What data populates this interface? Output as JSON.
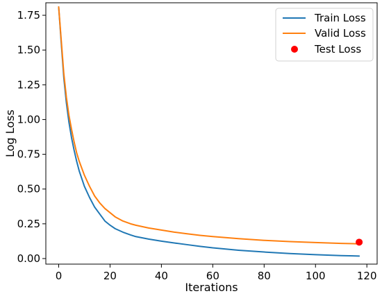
{
  "chart_data": {
    "type": "line",
    "title": "",
    "xlabel": "Iterations",
    "ylabel": "Log Loss",
    "xlim": [
      -5,
      124
    ],
    "ylim": [
      -0.04,
      1.84
    ],
    "x_ticks": [
      0,
      20,
      40,
      60,
      80,
      100,
      120
    ],
    "y_ticks": [
      0.0,
      0.25,
      0.5,
      0.75,
      1.0,
      1.25,
      1.5,
      1.75
    ],
    "x_tick_labels": [
      "0",
      "20",
      "40",
      "60",
      "80",
      "100",
      "120"
    ],
    "y_tick_labels": [
      "0.00",
      "0.25",
      "0.50",
      "0.75",
      "1.00",
      "1.25",
      "1.50",
      "1.75"
    ],
    "grid": false,
    "legend_position": "top-right",
    "series": [
      {
        "name": "Train Loss",
        "kind": "line",
        "color": "#1f77b4",
        "x": [
          0,
          1,
          2,
          3,
          4,
          5,
          6,
          7,
          8,
          10,
          12,
          14,
          16,
          18,
          20,
          22,
          25,
          28,
          30,
          35,
          40,
          45,
          50,
          55,
          60,
          70,
          80,
          90,
          100,
          110,
          117
        ],
        "y": [
          1.81,
          1.55,
          1.3,
          1.12,
          0.98,
          0.87,
          0.78,
          0.7,
          0.63,
          0.52,
          0.44,
          0.37,
          0.32,
          0.27,
          0.24,
          0.215,
          0.19,
          0.17,
          0.158,
          0.14,
          0.125,
          0.112,
          0.1,
          0.088,
          0.077,
          0.06,
          0.047,
          0.036,
          0.028,
          0.021,
          0.018
        ]
      },
      {
        "name": "Valid Loss",
        "kind": "line",
        "color": "#ff7f0e",
        "x": [
          0,
          1,
          2,
          3,
          4,
          5,
          6,
          7,
          8,
          10,
          12,
          14,
          16,
          18,
          20,
          22,
          25,
          28,
          30,
          35,
          40,
          45,
          50,
          55,
          60,
          70,
          80,
          90,
          100,
          110,
          117
        ],
        "y": [
          1.81,
          1.57,
          1.33,
          1.16,
          1.03,
          0.93,
          0.84,
          0.76,
          0.7,
          0.6,
          0.52,
          0.45,
          0.4,
          0.36,
          0.33,
          0.3,
          0.27,
          0.25,
          0.24,
          0.22,
          0.205,
          0.19,
          0.178,
          0.167,
          0.158,
          0.143,
          0.131,
          0.122,
          0.115,
          0.109,
          0.106
        ]
      },
      {
        "name": "Test Loss",
        "kind": "scatter",
        "color": "#ff0000",
        "x": [
          117
        ],
        "y": [
          0.118
        ]
      }
    ]
  }
}
